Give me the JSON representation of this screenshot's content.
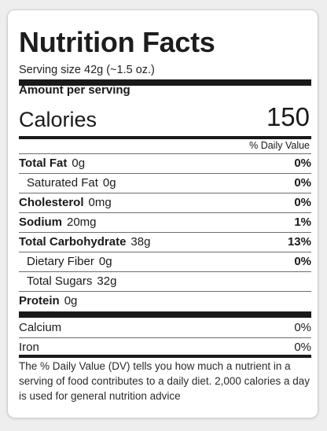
{
  "label": {
    "title": "Nutrition Facts",
    "serving_size": "Serving size 42g (~1.5 oz.)",
    "amount_per_serving": "Amount per serving",
    "calories_label": "Calories",
    "calories_value": "150",
    "daily_value_header": "% Daily Value",
    "nutrients": [
      {
        "name": "Total Fat",
        "amount": "0g",
        "dv": "0%",
        "bold": true
      },
      {
        "name": "Saturated Fat",
        "amount": "0g",
        "dv": "0%",
        "bold": false
      },
      {
        "name": "Cholesterol",
        "amount": "0mg",
        "dv": "0%",
        "bold": true
      },
      {
        "name": "Sodium",
        "amount": "20mg",
        "dv": "1%",
        "bold": true
      },
      {
        "name": "Total Carbohydrate",
        "amount": "38g",
        "dv": "13%",
        "bold": true
      },
      {
        "name": "Dietary Fiber",
        "amount": "0g",
        "dv": "0%",
        "bold": false
      },
      {
        "name": "Total Sugars",
        "amount": "32g",
        "dv": "",
        "bold": false
      },
      {
        "name": "Protein",
        "amount": "0g",
        "dv": "",
        "bold": true
      }
    ],
    "micronutrients": [
      {
        "name": "Calcium",
        "dv": "0%"
      },
      {
        "name": "Iron",
        "dv": "0%"
      }
    ],
    "footnote": "The % Daily Value (DV) tells you how much a nutrient in a serving of food contributes to a daily diet. 2,000 calories a day is used for general nutrition advice"
  }
}
